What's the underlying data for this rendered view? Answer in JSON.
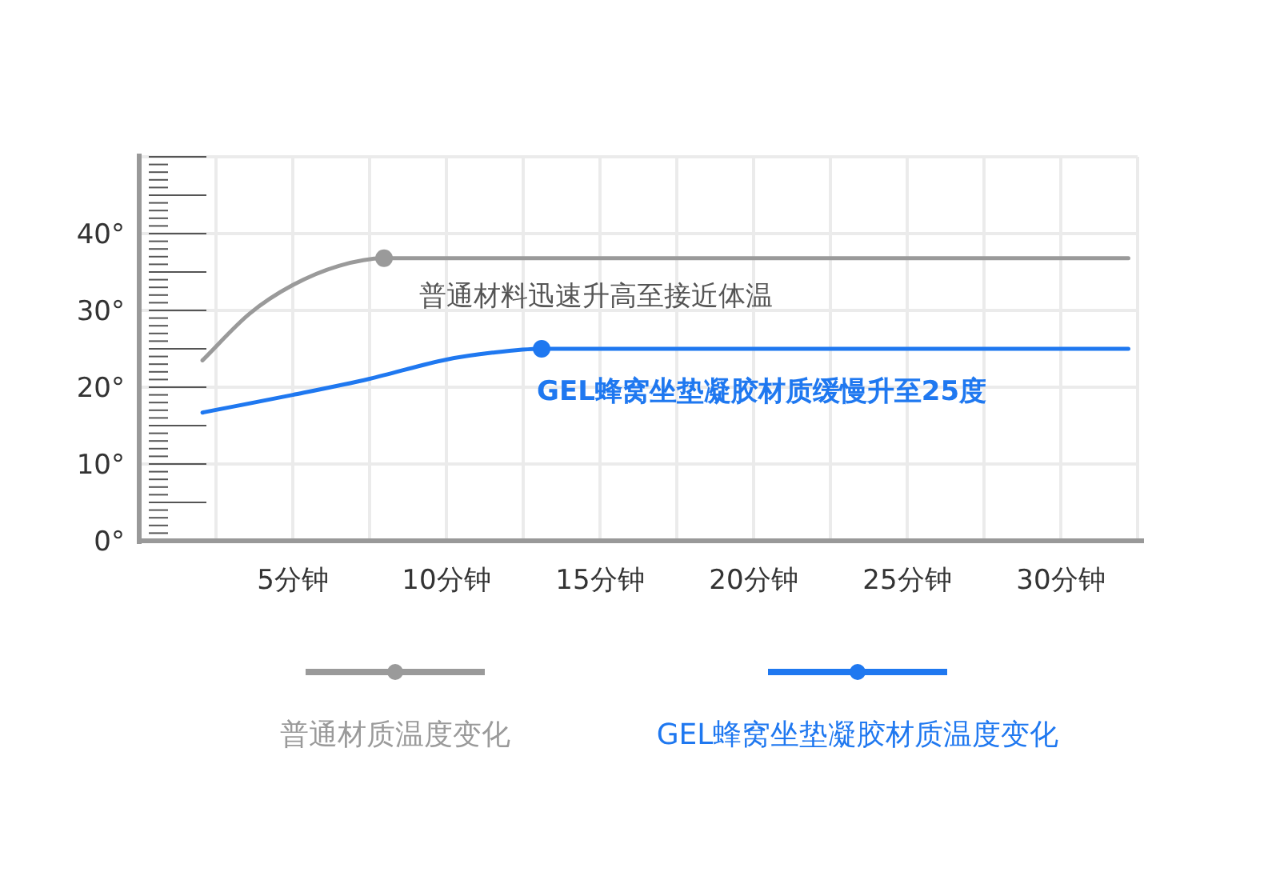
{
  "chart_data": {
    "type": "line",
    "xlim": [
      0,
      32.5
    ],
    "xticks": [
      {
        "value": 2.5,
        "label": null
      },
      {
        "value": 5,
        "label": "5分钟"
      },
      {
        "value": 7.5,
        "label": null
      },
      {
        "value": 10,
        "label": "10分钟"
      },
      {
        "value": 12.5,
        "label": null
      },
      {
        "value": 15,
        "label": "15分钟"
      },
      {
        "value": 17.5,
        "label": null
      },
      {
        "value": 20,
        "label": "20分钟"
      },
      {
        "value": 22.5,
        "label": null
      },
      {
        "value": 25,
        "label": "25分钟"
      },
      {
        "value": 27.5,
        "label": null
      },
      {
        "value": 30,
        "label": "30分钟"
      }
    ],
    "ylim": [
      0,
      50
    ],
    "yticks": [
      {
        "value": 0,
        "label": "0°"
      },
      {
        "value": 10,
        "label": "10°"
      },
      {
        "value": 20,
        "label": "20°"
      },
      {
        "value": 30,
        "label": "30°"
      },
      {
        "value": 40,
        "label": "40°"
      },
      {
        "value": 50,
        "label": null
      }
    ],
    "grid": true,
    "legend": "bottom",
    "series": [
      {
        "name": "普通材质温度变化",
        "color": "#9a9a9a",
        "x": [
          2.06,
          3.6,
          5,
          6.5,
          7.97,
          32.2
        ],
        "values": [
          23.5,
          29.6,
          33.3,
          35.8,
          36.8,
          36.8
        ]
      },
      {
        "name": "GEL蜂窝坐垫凝胶材质温度变化",
        "color": "#1f78f0",
        "x": [
          2.06,
          5,
          7.5,
          10,
          11.5,
          13.1,
          32.2
        ],
        "values": [
          16.7,
          19,
          21.1,
          23.6,
          24.5,
          25,
          25
        ]
      }
    ],
    "annotations": [
      {
        "text": "普通材料迅速升高至接近体温",
        "x": 7.97,
        "y": 36.8
      },
      {
        "text": "GEL蜂窝坐垫凝胶材质缓慢升至25度",
        "x": 13.1,
        "y": 25
      }
    ]
  }
}
